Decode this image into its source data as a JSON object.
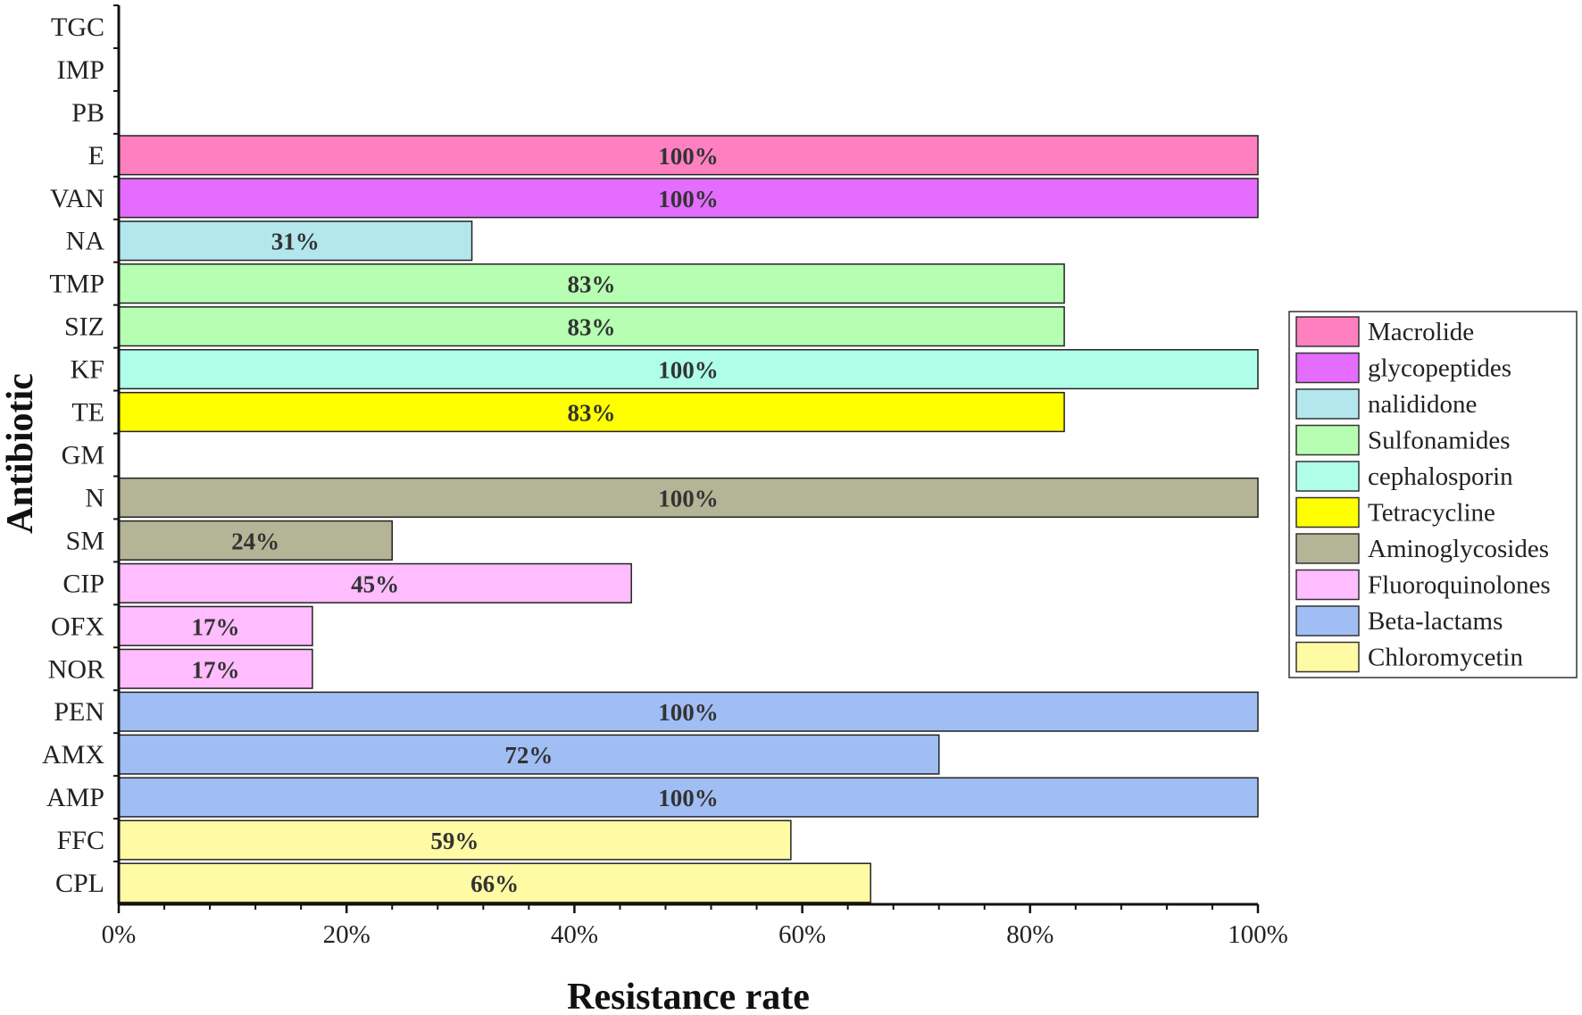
{
  "chart_data": {
    "type": "bar",
    "orientation": "horizontal",
    "xlabel": "Resistance rate",
    "ylabel": "Antibiotic",
    "xlim": [
      0,
      100
    ],
    "x_ticks": [
      "0%",
      "20%",
      "40%",
      "60%",
      "80%",
      "100%"
    ],
    "categories": [
      "TGC",
      "IMP",
      "PB",
      "E",
      "VAN",
      "NA",
      "TMP",
      "SIZ",
      "KF",
      "TE",
      "GM",
      "N",
      "SM",
      "CIP",
      "OFX",
      "NOR",
      "PEN",
      "AMX",
      "AMP",
      "FFC",
      "CPL"
    ],
    "values": [
      0,
      0,
      0,
      100,
      100,
      31,
      83,
      83,
      100,
      83,
      0,
      100,
      24,
      45,
      17,
      17,
      100,
      72,
      100,
      59,
      66
    ],
    "labels": [
      "",
      "",
      "",
      "100%",
      "100%",
      "31%",
      "83%",
      "83%",
      "100%",
      "83%",
      "",
      "100%",
      "24%",
      "45%",
      "17%",
      "17%",
      "100%",
      "72%",
      "100%",
      "59%",
      "66%"
    ],
    "groups": [
      "",
      "",
      "",
      "Macrolide",
      "glycopeptides",
      "nalididone",
      "Sulfonamides",
      "Sulfonamides",
      "cephalosporin",
      "Tetracycline",
      "",
      "Aminoglycosides",
      "Aminoglycosides",
      "Fluoroquinolones",
      "Fluoroquinolones",
      "Fluoroquinolones",
      "Beta-lactams",
      "Beta-lactams",
      "Beta-lactams",
      "Chloromycetin",
      "Chloromycetin"
    ],
    "legend": [
      {
        "name": "Macrolide",
        "color": "#ff80c0"
      },
      {
        "name": "glycopeptides",
        "color": "#e46cff"
      },
      {
        "name": "nalididone",
        "color": "#b4e6ee"
      },
      {
        "name": "Sulfonamides",
        "color": "#b6ffb2"
      },
      {
        "name": "cephalosporin",
        "color": "#aefee8"
      },
      {
        "name": "Tetracycline",
        "color": "#ffff00"
      },
      {
        "name": "Aminoglycosides",
        "color": "#b4b496"
      },
      {
        "name": "Fluoroquinolones",
        "color": "#ffbcfe"
      },
      {
        "name": "Beta-lactams",
        "color": "#a0bef4"
      },
      {
        "name": "Chloromycetin",
        "color": "#fffaa4"
      }
    ],
    "legend_position": "right"
  }
}
